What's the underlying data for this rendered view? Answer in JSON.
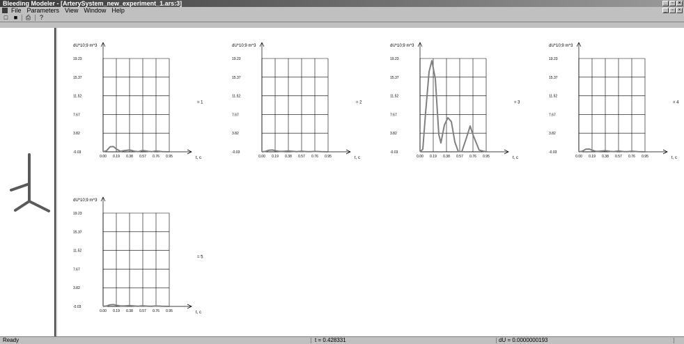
{
  "window": {
    "title": "Bleeding Modeler - [ArterySystem_new_experiment_1.ars:3]"
  },
  "menu": {
    "items": [
      "File",
      "Parameters",
      "View",
      "Window",
      "Help"
    ]
  },
  "toolbar": {
    "icons": [
      "new-file-icon",
      "save-icon",
      "print-icon",
      "help-cursor-icon"
    ]
  },
  "statusbar": {
    "ready": "Ready",
    "t_value": "t = 0.428331",
    "du_value": "dU = 0.0000000193"
  },
  "colors": {
    "curve": "#808080",
    "grid": "#000000",
    "background": "#ffffff"
  },
  "chart_data": [
    {
      "type": "line",
      "ylabel": "dU*10;9 m^3",
      "xlabel": "t, c",
      "series_label": "= 1",
      "xticks": [
        "0.00",
        "0.19",
        "0.38",
        "0.57",
        "0.76",
        "0.95"
      ],
      "yticks": [
        "19.23",
        "15.37",
        "11.52",
        "7.67",
        "3.82",
        "-0.03"
      ],
      "xlim": [
        0.0,
        0.95
      ],
      "ylim": [
        -0.03,
        19.23
      ],
      "grid": true,
      "x": [
        0.0,
        0.05,
        0.1,
        0.15,
        0.19,
        0.25,
        0.3,
        0.38,
        0.45,
        0.5,
        0.57,
        0.65,
        0.7,
        0.76,
        0.85,
        0.95
      ],
      "y": [
        -0.03,
        0.2,
        1.0,
        1.05,
        0.55,
        0.05,
        0.2,
        0.35,
        0.1,
        0.0,
        0.25,
        0.05,
        0.0,
        0.15,
        0.0,
        -0.03
      ]
    },
    {
      "type": "line",
      "ylabel": "dU*10;9 m^3",
      "xlabel": "t, c",
      "series_label": "= 2",
      "xticks": [
        "0.00",
        "0.19",
        "0.38",
        "0.57",
        "0.76",
        "0.95"
      ],
      "yticks": [
        "19.23",
        "15.37",
        "11.52",
        "7.67",
        "3.82",
        "-0.03"
      ],
      "xlim": [
        0.0,
        0.95
      ],
      "ylim": [
        -0.03,
        19.23
      ],
      "grid": true,
      "x": [
        0.0,
        0.05,
        0.1,
        0.15,
        0.19,
        0.25,
        0.3,
        0.38,
        0.45,
        0.5,
        0.57,
        0.65,
        0.7,
        0.76,
        0.85,
        0.95
      ],
      "y": [
        -0.03,
        0.05,
        0.3,
        0.35,
        0.2,
        0.05,
        0.05,
        0.15,
        0.05,
        0.0,
        0.1,
        0.0,
        0.0,
        0.05,
        0.0,
        -0.03
      ]
    },
    {
      "type": "line",
      "ylabel": "dU*10;9 m^3",
      "xlabel": "t, c",
      "series_label": "= 3",
      "xticks": [
        "0.00",
        "0.19",
        "0.38",
        "0.57",
        "0.76",
        "0.95"
      ],
      "yticks": [
        "19.23",
        "15.37",
        "11.52",
        "7.67",
        "3.82",
        "-0.03"
      ],
      "xlim": [
        0.0,
        0.95
      ],
      "ylim": [
        -0.03,
        19.23
      ],
      "grid": true,
      "x": [
        0.0,
        0.04,
        0.08,
        0.13,
        0.17,
        0.22,
        0.27,
        0.3,
        0.35,
        0.4,
        0.45,
        0.5,
        0.55,
        0.6,
        0.67,
        0.72,
        0.76,
        0.85,
        0.95
      ],
      "y": [
        -0.03,
        0.5,
        8.0,
        16.5,
        18.8,
        15.0,
        3.5,
        1.8,
        5.5,
        7.0,
        6.2,
        2.0,
        0.0,
        0.0,
        3.0,
        5.3,
        3.5,
        0.3,
        -0.03
      ]
    },
    {
      "type": "line",
      "ylabel": "dU*10;9 m^3",
      "xlabel": "t, c",
      "series_label": "= 4",
      "xticks": [
        "0.00",
        "0.19",
        "0.38",
        "0.57",
        "0.76",
        "0.95"
      ],
      "yticks": [
        "19.23",
        "15.37",
        "11.52",
        "7.67",
        "3.82",
        "-0.03"
      ],
      "xlim": [
        0.0,
        0.95
      ],
      "ylim": [
        -0.03,
        19.23
      ],
      "grid": true,
      "x": [
        0.0,
        0.05,
        0.1,
        0.15,
        0.19,
        0.25,
        0.3,
        0.38,
        0.45,
        0.5,
        0.57,
        0.65,
        0.7,
        0.76,
        0.85,
        0.95
      ],
      "y": [
        -0.03,
        0.1,
        0.5,
        0.55,
        0.3,
        0.05,
        0.1,
        0.2,
        0.05,
        0.0,
        0.15,
        0.0,
        0.0,
        0.1,
        0.0,
        -0.03
      ]
    },
    {
      "type": "line",
      "ylabel": "dU*10;9 m^3",
      "xlabel": "t, c",
      "series_label": "= 5",
      "xticks": [
        "0.00",
        "0.19",
        "0.38",
        "0.57",
        "0.76",
        "0.95"
      ],
      "yticks": [
        "19.23",
        "15.37",
        "11.52",
        "7.67",
        "3.82",
        "-0.03"
      ],
      "xlim": [
        0.0,
        0.95
      ],
      "ylim": [
        -0.03,
        19.23
      ],
      "grid": true,
      "x": [
        0.0,
        0.05,
        0.1,
        0.15,
        0.19,
        0.25,
        0.3,
        0.38,
        0.45,
        0.5,
        0.57,
        0.65,
        0.7,
        0.76,
        0.85,
        0.95
      ],
      "y": [
        -0.03,
        0.05,
        0.3,
        0.35,
        0.2,
        0.05,
        0.05,
        0.15,
        0.05,
        0.0,
        0.1,
        0.0,
        0.0,
        0.05,
        0.0,
        -0.03
      ]
    }
  ]
}
